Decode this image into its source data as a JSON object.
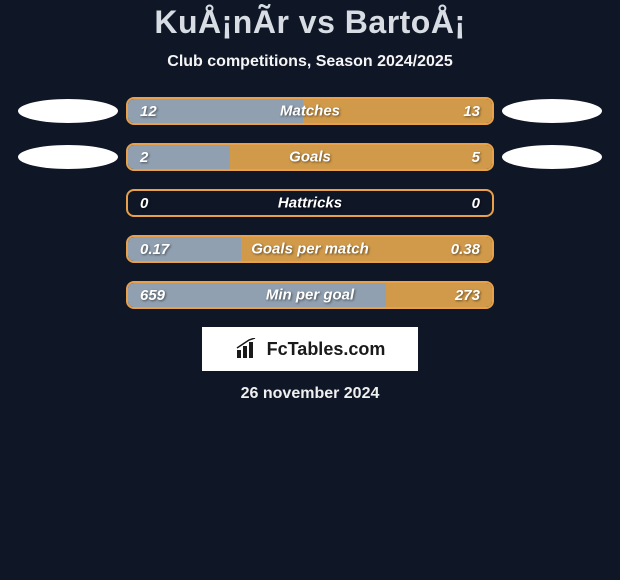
{
  "title": "KuÅ¡nÃr vs BartoÅ¡",
  "subtitle": "Club competitions, Season 2024/2025",
  "date": "26 november 2024",
  "footer_brand": "FcTables.com",
  "colors": {
    "background": "#0f1626",
    "left_fill": "#90a0b0",
    "right_fill": "#d09a4a",
    "bar_border": "#e8a04a",
    "ellipse": "#ffffff",
    "text": "#ffffff"
  },
  "stats": [
    {
      "name": "Matches",
      "left_value": "12",
      "right_value": "13",
      "left_pct": 48,
      "right_pct": 52,
      "show_ellipses": true
    },
    {
      "name": "Goals",
      "left_value": "2",
      "right_value": "5",
      "left_pct": 28,
      "right_pct": 72,
      "show_ellipses": true
    },
    {
      "name": "Hattricks",
      "left_value": "0",
      "right_value": "0",
      "left_pct": 50,
      "right_pct": 50,
      "show_ellipses": false,
      "split_mode": "none"
    },
    {
      "name": "Goals per match",
      "left_value": "0.17",
      "right_value": "0.38",
      "left_pct": 31,
      "right_pct": 69,
      "show_ellipses": false
    },
    {
      "name": "Min per goal",
      "left_value": "659",
      "right_value": "273",
      "left_pct": 71,
      "right_pct": 29,
      "show_ellipses": false
    }
  ]
}
